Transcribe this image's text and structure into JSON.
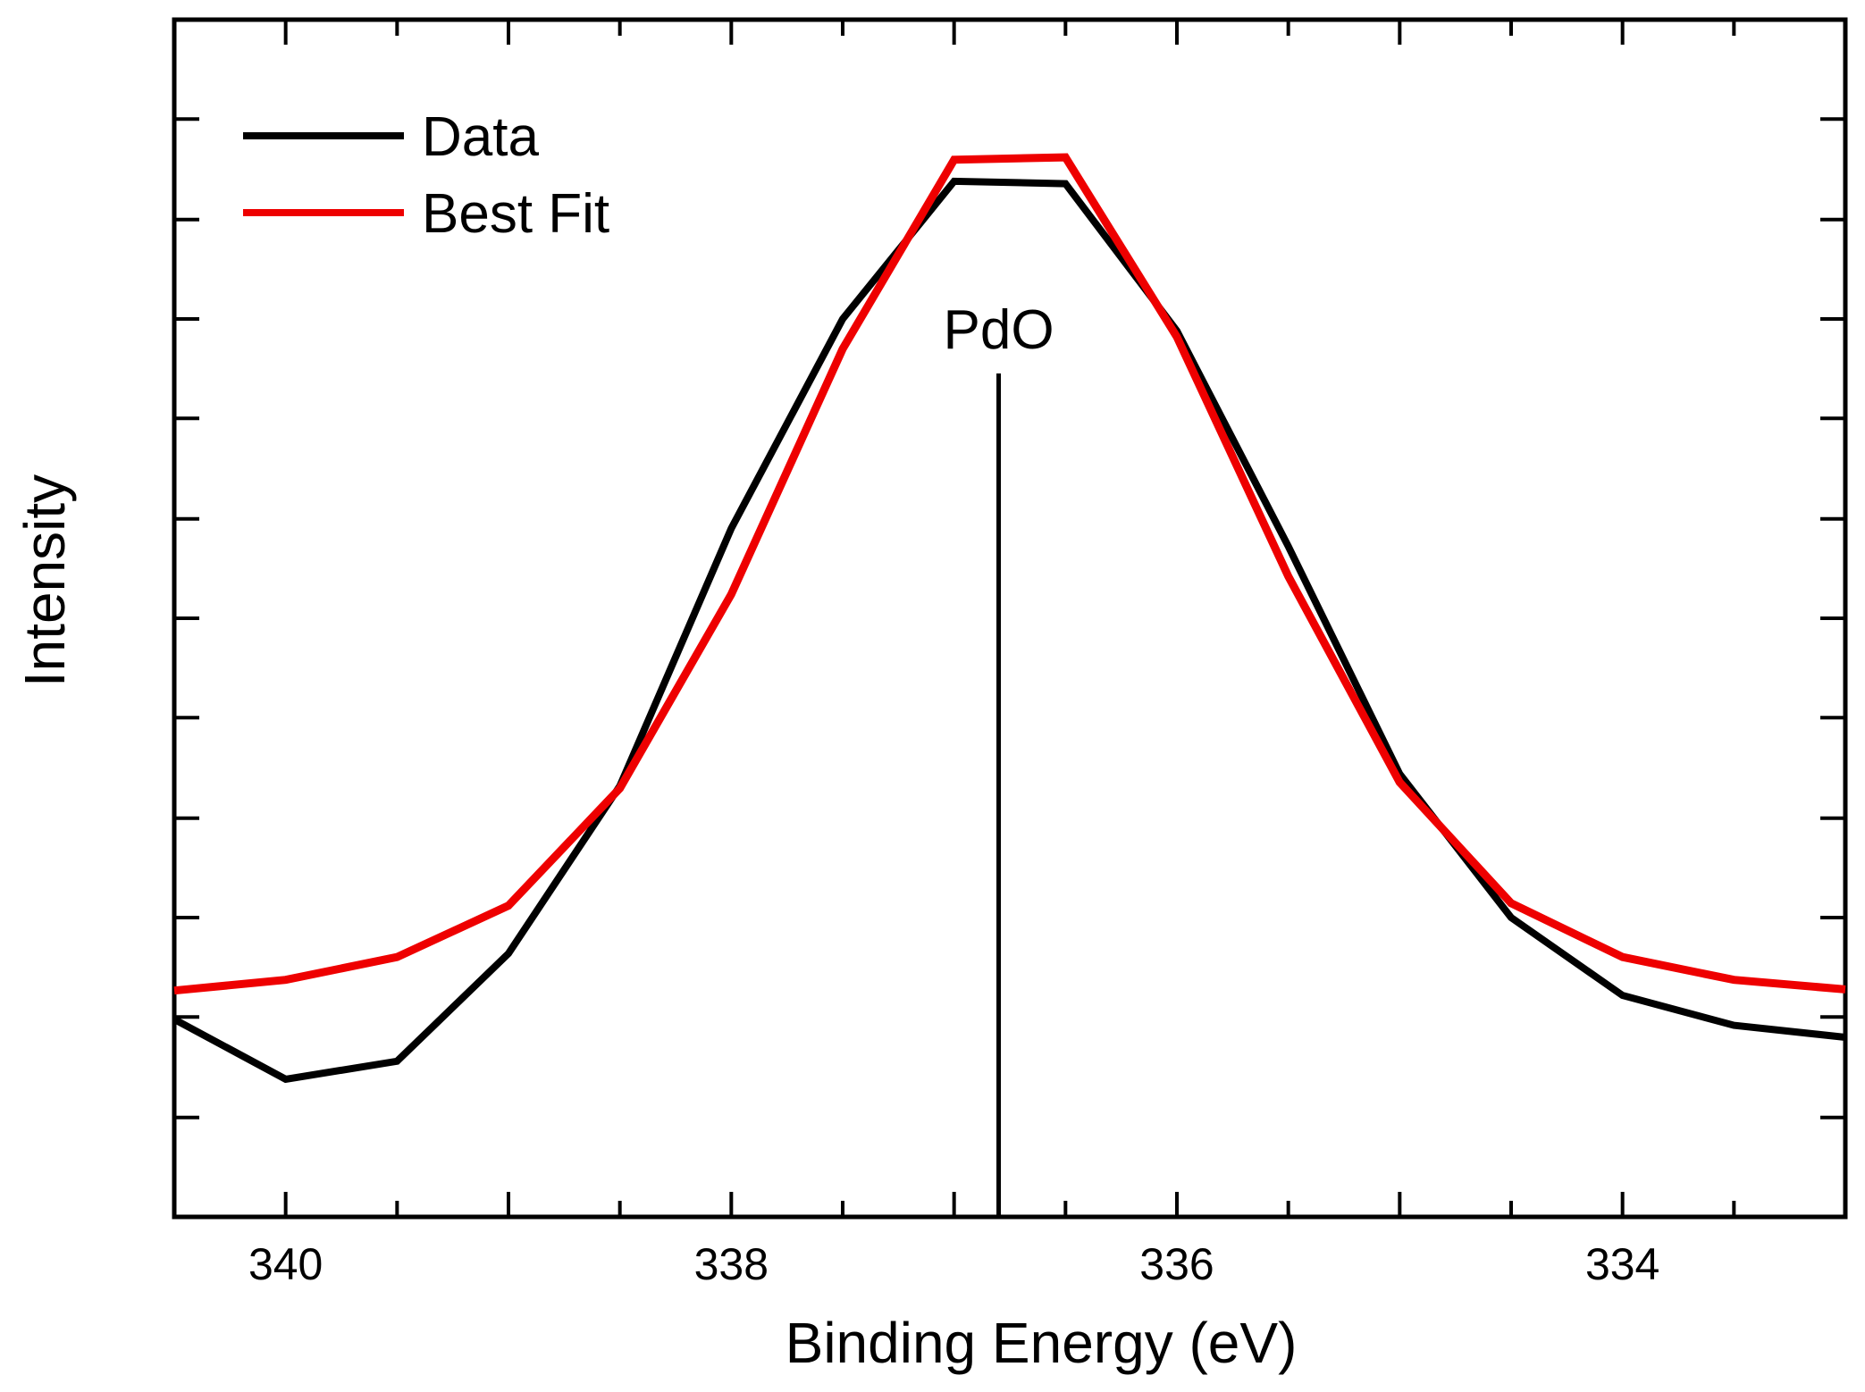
{
  "chart_data": {
    "type": "line",
    "title": "",
    "xlabel": "Binding Energy (eV)",
    "ylabel": "Intensity",
    "xlim": [
      340.5,
      333
    ],
    "ylim": [
      0,
      100
    ],
    "x_reversed": true,
    "xticks": [
      340,
      338,
      336,
      334
    ],
    "xtick_labels": [
      "340",
      "338",
      "336",
      "334"
    ],
    "yticks": [
      8.3,
      16.7,
      25,
      33.3,
      41.7,
      50,
      58.3,
      66.7,
      75,
      83.3,
      91.7
    ],
    "y_tick_labels_shown": false,
    "grid": false,
    "legend": {
      "position": "top-left",
      "entries": [
        "Data",
        "Best Fit"
      ]
    },
    "colors": {
      "Data": "#000000",
      "Best Fit": "#ee0000"
    },
    "series": [
      {
        "name": "Data",
        "x": [
          340.5,
          340,
          339.5,
          339,
          338.5,
          338,
          337.5,
          337,
          336.5,
          336,
          335.5,
          335,
          334.5,
          334,
          333.5,
          333
        ],
        "values": [
          16.5,
          11.5,
          13,
          22,
          36,
          57.5,
          75,
          86.5,
          86.3,
          74,
          56,
          37,
          25,
          18.5,
          16,
          15
        ]
      },
      {
        "name": "Best Fit",
        "x": [
          340.5,
          340,
          339.5,
          339,
          338.5,
          338,
          337.5,
          337,
          336.5,
          336,
          335.5,
          335,
          334.5,
          334,
          333.5,
          333
        ],
        "values": [
          18.9,
          19.8,
          21.7,
          26,
          35.8,
          52,
          72.5,
          88.3,
          88.5,
          73.5,
          53.5,
          36.3,
          26.2,
          21.7,
          19.8,
          19
        ]
      }
    ],
    "annotations": [
      {
        "text": "PdO",
        "x": 336.8
      }
    ]
  }
}
